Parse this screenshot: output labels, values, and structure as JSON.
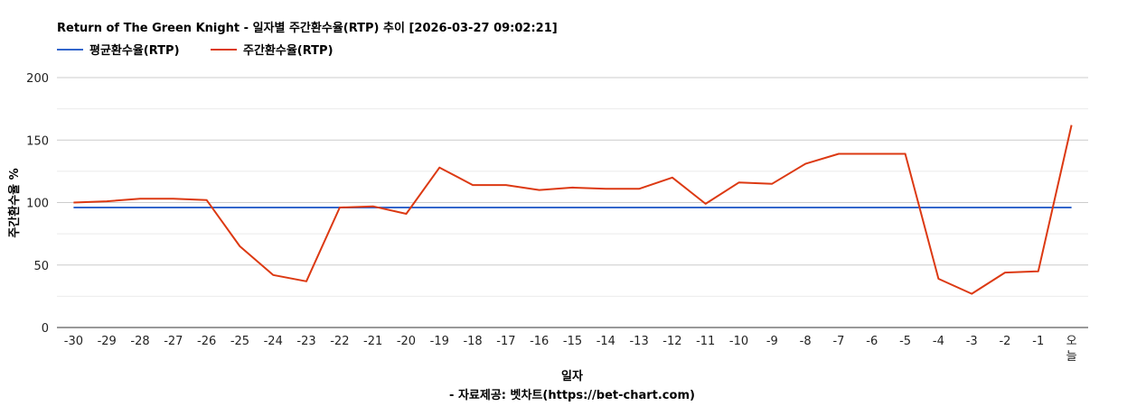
{
  "chart_data": {
    "type": "line",
    "title": "Return of The Green Knight - 일자별 주간환수율(RTP) 추이 [2026-03-27 09:02:21]",
    "xlabel": "일자",
    "ylabel": "주간환수율 %",
    "source": "- 자료제공: 벳차트(https://bet-chart.com)",
    "categories": [
      "-30",
      "-29",
      "-28",
      "-27",
      "-26",
      "-25",
      "-24",
      "-23",
      "-22",
      "-21",
      "-20",
      "-19",
      "-18",
      "-17",
      "-16",
      "-15",
      "-14",
      "-13",
      "-12",
      "-11",
      "-10",
      "-9",
      "-8",
      "-7",
      "-6",
      "-5",
      "-4",
      "-3",
      "-2",
      "-1",
      "오늘"
    ],
    "ylim": [
      0,
      200
    ],
    "yticks": [
      "0",
      "50",
      "100",
      "150",
      "200"
    ],
    "grid": true,
    "legend": "top-left",
    "series": [
      {
        "name": "평균환수율(RTP)",
        "color": "#3366cc",
        "values": [
          96,
          96,
          96,
          96,
          96,
          96,
          96,
          96,
          96,
          96,
          96,
          96,
          96,
          96,
          96,
          96,
          96,
          96,
          96,
          96,
          96,
          96,
          96,
          96,
          96,
          96,
          96,
          96,
          96,
          96,
          96
        ]
      },
      {
        "name": "주간환수율(RTP)",
        "color": "#dc3912",
        "values": [
          100,
          101,
          103,
          103,
          102,
          65,
          42,
          37,
          96,
          97,
          91,
          128,
          114,
          114,
          110,
          112,
          111,
          111,
          120,
          99,
          116,
          115,
          131,
          139,
          139,
          139,
          39,
          27,
          44,
          45,
          162
        ]
      }
    ]
  }
}
